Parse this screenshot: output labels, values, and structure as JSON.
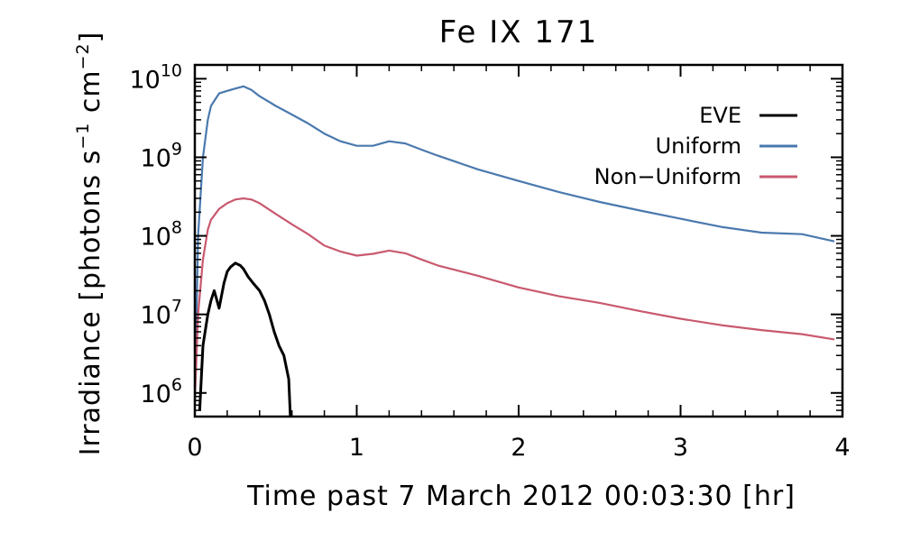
{
  "chart_data": {
    "type": "line",
    "title": "Fe IX 171",
    "xlabel": "Time past 7 March 2012 00:03:30 [hr]",
    "ylabel_main": "Irradiance [photons s",
    "ylabel_mid": " cm",
    "ylabel_end": "]",
    "ylabel_sup1": "−1",
    "ylabel_sup2": "−2",
    "xlim": [
      0,
      4
    ],
    "ylim": [
      500000.0,
      15000000000.0
    ],
    "yscale": "log",
    "x_ticks": [
      {
        "value": 0,
        "label": "0"
      },
      {
        "value": 1,
        "label": "1"
      },
      {
        "value": 2,
        "label": "2"
      },
      {
        "value": 3,
        "label": "3"
      },
      {
        "value": 4,
        "label": "4"
      }
    ],
    "y_ticks": [
      {
        "value": 1000000.0,
        "base": "10",
        "exp": "6"
      },
      {
        "value": 10000000.0,
        "base": "10",
        "exp": "7"
      },
      {
        "value": 100000000.0,
        "base": "10",
        "exp": "8"
      },
      {
        "value": 1000000000.0,
        "base": "10",
        "exp": "9"
      },
      {
        "value": 10000000000.0,
        "base": "10",
        "exp": "10"
      }
    ],
    "legend_position": "top-right",
    "series": [
      {
        "name": "EVE",
        "color": "#000000",
        "x": [
          0.03,
          0.05,
          0.08,
          0.1,
          0.12,
          0.15,
          0.18,
          0.2,
          0.22,
          0.25,
          0.28,
          0.3,
          0.33,
          0.36,
          0.4,
          0.43,
          0.46,
          0.49,
          0.52,
          0.55,
          0.58,
          0.59
        ],
        "y": [
          600000.0,
          4000000.0,
          10000000.0,
          15000000.0,
          20000000.0,
          12000000.0,
          25000000.0,
          35000000.0,
          40000000.0,
          45000000.0,
          42000000.0,
          38000000.0,
          30000000.0,
          25000000.0,
          20000000.0,
          15000000.0,
          10000000.0,
          6000000.0,
          4000000.0,
          3000000.0,
          1500000.0,
          500000.0
        ]
      },
      {
        "name": "Uniform",
        "color": "#4a79ae",
        "x": [
          0.0,
          0.02,
          0.05,
          0.08,
          0.1,
          0.15,
          0.2,
          0.25,
          0.3,
          0.35,
          0.4,
          0.5,
          0.6,
          0.7,
          0.8,
          0.9,
          1.0,
          1.1,
          1.2,
          1.3,
          1.4,
          1.5,
          1.75,
          2.0,
          2.25,
          2.5,
          2.75,
          3.0,
          3.25,
          3.5,
          3.75,
          3.95
        ],
        "y": [
          800000.0,
          100000000.0,
          1000000000.0,
          3000000000.0,
          4500000000.0,
          6500000000.0,
          7000000000.0,
          7500000000.0,
          8000000000.0,
          7200000000.0,
          6000000000.0,
          4500000000.0,
          3500000000.0,
          2700000000.0,
          2000000000.0,
          1600000000.0,
          1400000000.0,
          1400000000.0,
          1600000000.0,
          1500000000.0,
          1250000000.0,
          1050000000.0,
          700000000.0,
          500000000.0,
          360000000.0,
          270000000.0,
          210000000.0,
          165000000.0,
          130000000.0,
          110000000.0,
          105000000.0,
          85000000.0
        ]
      },
      {
        "name": "Non−Uniform",
        "color": "#c9596e",
        "x": [
          0.0,
          0.02,
          0.05,
          0.08,
          0.1,
          0.15,
          0.2,
          0.25,
          0.3,
          0.35,
          0.4,
          0.5,
          0.6,
          0.7,
          0.8,
          0.9,
          1.0,
          1.1,
          1.2,
          1.3,
          1.4,
          1.5,
          1.75,
          2.0,
          2.25,
          2.5,
          2.75,
          3.0,
          3.25,
          3.5,
          3.75,
          3.95
        ],
        "y": [
          800000.0,
          10000000.0,
          50000000.0,
          120000000.0,
          160000000.0,
          220000000.0,
          260000000.0,
          290000000.0,
          300000000.0,
          290000000.0,
          260000000.0,
          190000000.0,
          140000000.0,
          105000000.0,
          75000000.0,
          63000000.0,
          56000000.0,
          59000000.0,
          65000000.0,
          60000000.0,
          50000000.0,
          42000000.0,
          31000000.0,
          22000000.0,
          17000000.0,
          14000000.0,
          11000000.0,
          8800000.0,
          7300000.0,
          6300000.0,
          5600000.0,
          4800000.0
        ]
      }
    ]
  }
}
